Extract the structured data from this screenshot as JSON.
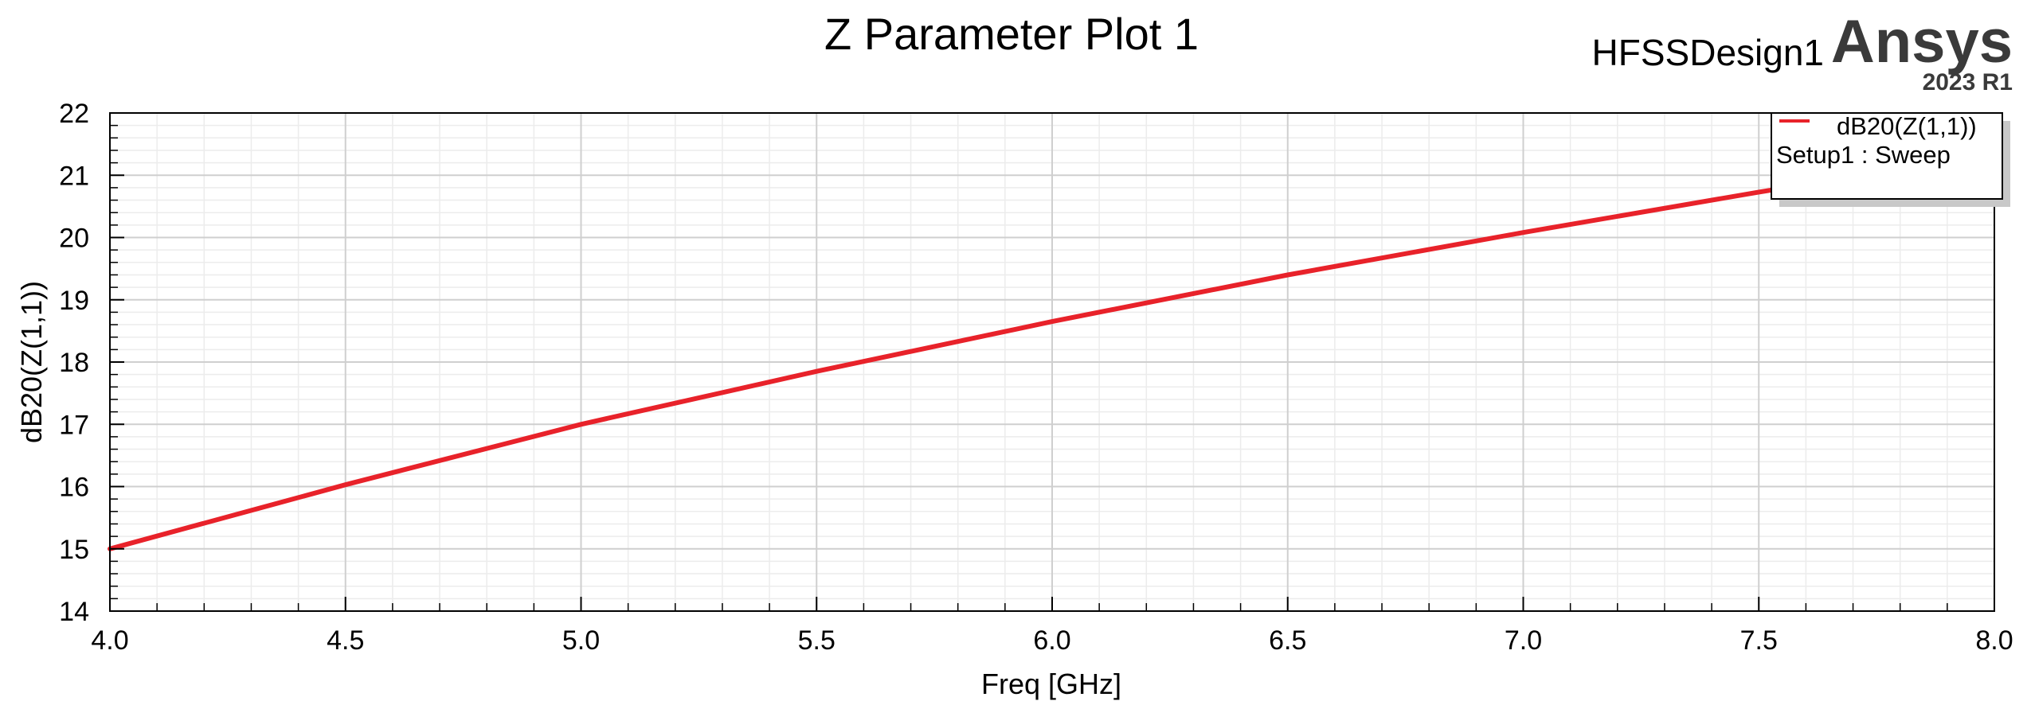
{
  "chart_data": {
    "type": "line",
    "title": "Z Parameter Plot 1",
    "xlabel": "Freq [GHz]",
    "ylabel": "dB20(Z(1,1))",
    "xlim": [
      4.0,
      8.0
    ],
    "ylim": [
      14,
      22
    ],
    "x_ticks": [
      "4.0",
      "4.5",
      "5.0",
      "5.5",
      "6.0",
      "6.5",
      "7.0",
      "7.5",
      "8.0"
    ],
    "y_ticks": [
      "14",
      "15",
      "16",
      "17",
      "18",
      "19",
      "20",
      "21",
      "22"
    ],
    "grid": true,
    "legend_position": "top-right",
    "series": [
      {
        "name": "dB20(Z(1,1))",
        "sub_label": "Setup1 : Sweep",
        "color": "#e8222a",
        "x": [
          4.0,
          4.5,
          5.0,
          5.5,
          6.0,
          6.5,
          7.0,
          7.5,
          7.72
        ],
        "y": [
          15.0,
          16.03,
          17.0,
          17.85,
          18.65,
          19.4,
          20.08,
          20.73,
          21.0
        ]
      }
    ]
  },
  "branding": {
    "design": "HFSSDesign1",
    "name": "Ansys",
    "version": "2023 R1"
  }
}
